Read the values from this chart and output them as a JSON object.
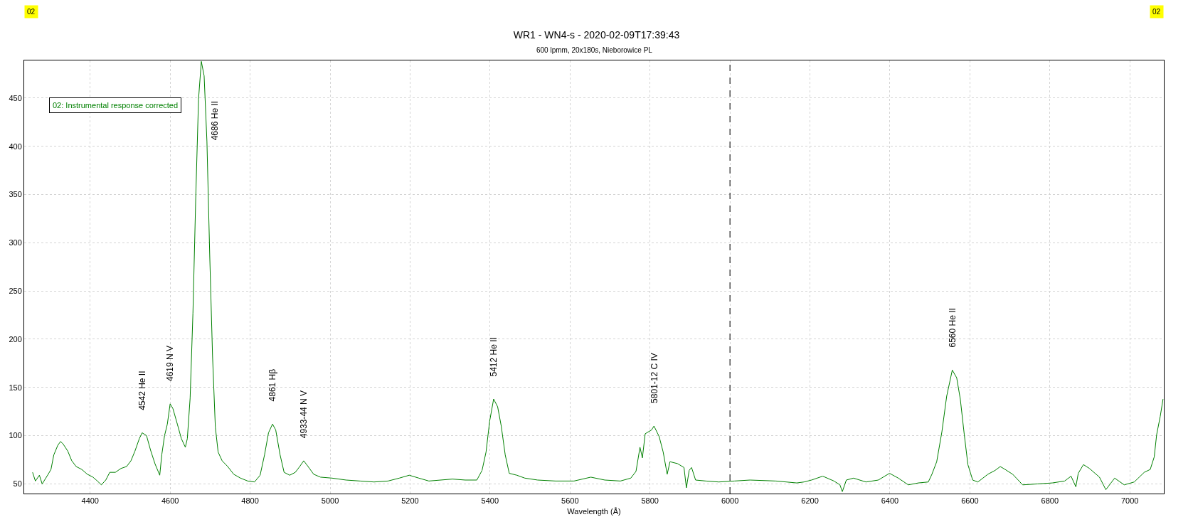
{
  "chart_data": {
    "type": "line",
    "title": "WR1 - WN4-s - 2020-02-09T17:39:43",
    "subtitle": "600 lpmm, 20x180s, Nieborowice PL",
    "xlabel": "Wavelength (Å)",
    "x": [
      4256,
      4263,
      4273,
      4280,
      4295,
      4302,
      4309,
      4319,
      4326,
      4333,
      4344,
      4354,
      4365,
      4379,
      4393,
      4407,
      4418,
      4428,
      4439,
      4449,
      4463,
      4477,
      4491,
      4502,
      4512,
      4523,
      4530,
      4541,
      4551,
      4562,
      4574,
      4579,
      4586,
      4593,
      4600,
      4607,
      4618,
      4628,
      4638,
      4643,
      4650,
      4657,
      4664,
      4671,
      4678,
      4685,
      4692,
      4699,
      4706,
      4713,
      4720,
      4730,
      4744,
      4759,
      4776,
      4794,
      4811,
      4825,
      4836,
      4846,
      4856,
      4864,
      4875,
      4885,
      4899,
      4913,
      4924,
      4934,
      4945,
      4959,
      4976,
      5005,
      5040,
      5075,
      5110,
      5145,
      5173,
      5198,
      5222,
      5247,
      5306,
      5338,
      5367,
      5380,
      5390,
      5399,
      5409,
      5419,
      5428,
      5438,
      5448,
      5467,
      5487,
      5519,
      5564,
      5610,
      5652,
      5687,
      5726,
      5752,
      5765,
      5775,
      5781,
      5788,
      5804,
      5810,
      5823,
      5833,
      5843,
      5850,
      5869,
      5885,
      5891,
      5898,
      5904,
      5914,
      5940,
      5972,
      6011,
      6050,
      6115,
      6167,
      6185,
      6204,
      6232,
      6260,
      6275,
      6281,
      6291,
      6309,
      6340,
      6371,
      6399,
      6421,
      6446,
      6471,
      6496,
      6505,
      6517,
      6530,
      6542,
      6556,
      6567,
      6576,
      6586,
      6595,
      6607,
      6620,
      6645,
      6663,
      6676,
      6688,
      6707,
      6732,
      6769,
      6806,
      6837,
      6853,
      6865,
      6871,
      6884,
      6899,
      6924,
      6940,
      6962,
      6986,
      7011,
      7036,
      7051,
      7061,
      7067,
      7076,
      7083
    ],
    "series": [
      {
        "name": "02: Instrumental response corrected",
        "color": "#008000",
        "values": [
          62,
          53,
          59,
          50,
          60,
          65,
          80,
          90,
          94,
          91,
          84,
          74,
          68,
          65,
          60,
          57,
          53,
          49,
          54,
          62,
          62,
          66,
          68,
          74,
          84,
          97,
          103,
          100,
          85,
          71,
          59,
          80,
          100,
          112,
          133,
          128,
          112,
          97,
          88,
          97,
          139,
          227,
          346,
          449,
          488,
          473,
          405,
          287,
          183,
          109,
          83,
          74,
          68,
          60,
          56,
          53,
          52,
          59,
          80,
          103,
          112,
          106,
          80,
          62,
          59,
          62,
          68,
          74,
          68,
          60,
          57,
          56,
          54,
          53,
          52,
          53,
          56,
          59,
          56,
          53,
          55,
          54,
          54,
          64,
          83,
          115,
          138,
          130,
          110,
          80,
          61,
          59,
          56,
          54,
          53,
          53,
          57,
          54,
          53,
          56,
          63,
          88,
          77,
          102,
          106,
          110,
          99,
          83,
          60,
          73,
          71,
          67,
          46,
          64,
          67,
          54,
          53,
          52,
          53,
          54,
          53,
          51,
          52,
          54,
          58,
          53,
          49,
          42,
          54,
          56,
          52,
          54,
          61,
          56,
          49,
          51,
          52,
          60,
          73,
          104,
          141,
          168,
          160,
          138,
          101,
          70,
          54,
          52,
          60,
          64,
          68,
          65,
          60,
          49,
          50,
          51,
          53,
          58,
          47,
          61,
          70,
          66,
          57,
          44,
          56,
          49,
          52,
          62,
          65,
          78,
          101,
          120,
          138
        ]
      }
    ],
    "xlim": [
      4235,
      7085
    ],
    "ylim": [
      40,
      489
    ],
    "xticks": [
      4400,
      4600,
      4800,
      5000,
      5200,
      5400,
      5600,
      5800,
      6000,
      6200,
      6400,
      6600,
      6800,
      7000
    ],
    "yticks": [
      50,
      100,
      150,
      200,
      250,
      300,
      350,
      400,
      450
    ],
    "grid": true,
    "legend": "top left",
    "marker": "none",
    "line_style": "solid",
    "ref_lines": [
      {
        "axis": "x",
        "value": 6000,
        "color": "#000000",
        "line_style": "dashed"
      }
    ],
    "annotations": [
      {
        "text": "4542 He II",
        "x": 4530,
        "y": 103
      },
      {
        "text": "4619 N V",
        "x": 4600,
        "y": 133
      },
      {
        "text": "4686 He II",
        "x": 4692,
        "y": 405
      },
      {
        "text": "4861 Hβ",
        "x": 4856,
        "y": 112
      },
      {
        "text": "4933-44 N V",
        "x": 4934,
        "y": 74
      },
      {
        "text": "5412 He II",
        "x": 5409,
        "y": 138
      },
      {
        "text": "5801-12 C IV",
        "x": 5810,
        "y": 110
      },
      {
        "text": "6560 He II",
        "x": 6556,
        "y": 168
      },
      "02",
      "02"
    ]
  }
}
